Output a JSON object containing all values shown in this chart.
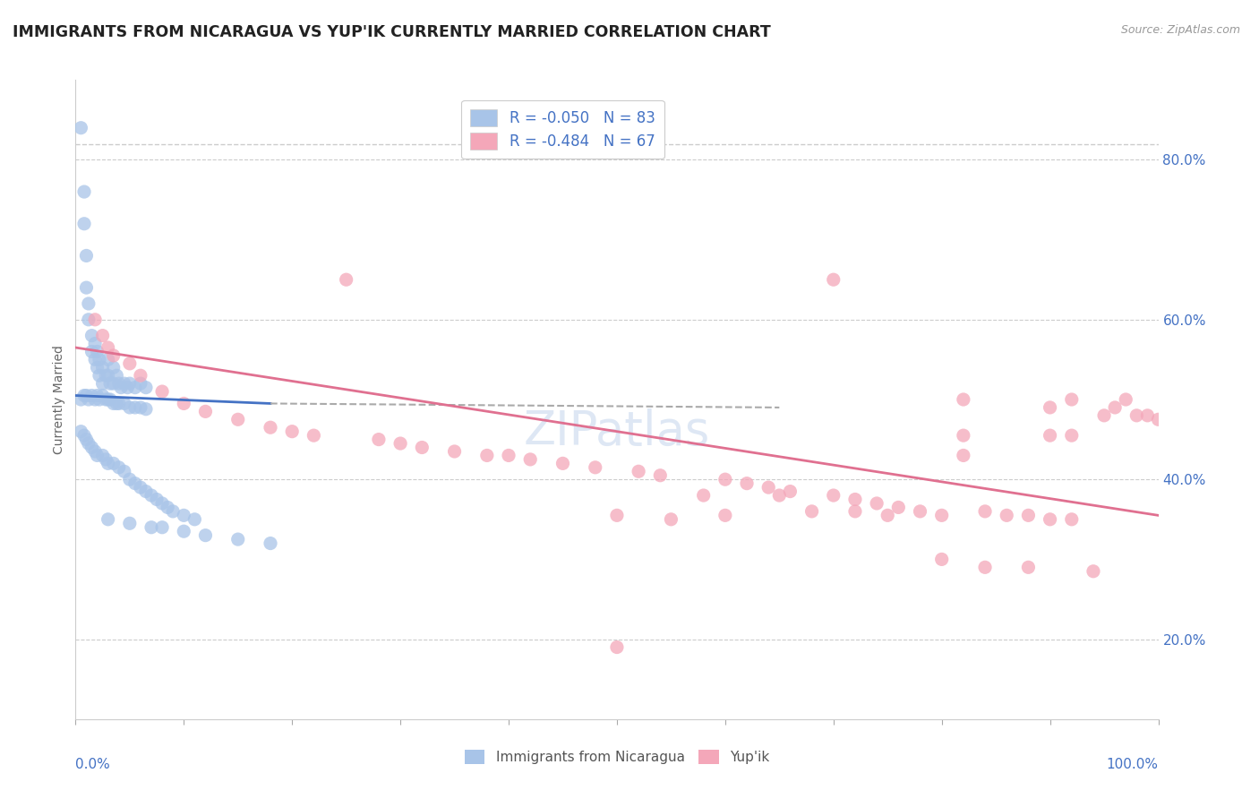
{
  "title": "IMMIGRANTS FROM NICARAGUA VS YUP'IK CURRENTLY MARRIED CORRELATION CHART",
  "source_text": "Source: ZipAtlas.com",
  "ylabel": "Currently Married",
  "xlim": [
    0.0,
    1.0
  ],
  "ylim": [
    0.1,
    0.9
  ],
  "yticks": [
    0.2,
    0.4,
    0.6,
    0.8
  ],
  "ytick_labels": [
    "20.0%",
    "40.0%",
    "60.0%",
    "80.0%"
  ],
  "blue_color": "#a8c4e8",
  "pink_color": "#f4a7b9",
  "blue_line_color": "#4472c4",
  "pink_line_color": "#e07090",
  "gray_dash_color": "#aaaaaa",
  "watermark": "ZIPatlas",
  "blue_scatter": [
    [
      0.005,
      0.84
    ],
    [
      0.008,
      0.76
    ],
    [
      0.008,
      0.72
    ],
    [
      0.01,
      0.68
    ],
    [
      0.01,
      0.64
    ],
    [
      0.012,
      0.62
    ],
    [
      0.012,
      0.6
    ],
    [
      0.015,
      0.58
    ],
    [
      0.015,
      0.56
    ],
    [
      0.018,
      0.57
    ],
    [
      0.018,
      0.55
    ],
    [
      0.02,
      0.56
    ],
    [
      0.02,
      0.54
    ],
    [
      0.022,
      0.55
    ],
    [
      0.022,
      0.53
    ],
    [
      0.025,
      0.54
    ],
    [
      0.025,
      0.52
    ],
    [
      0.028,
      0.53
    ],
    [
      0.03,
      0.55
    ],
    [
      0.03,
      0.53
    ],
    [
      0.032,
      0.52
    ],
    [
      0.035,
      0.54
    ],
    [
      0.035,
      0.52
    ],
    [
      0.038,
      0.53
    ],
    [
      0.04,
      0.52
    ],
    [
      0.042,
      0.515
    ],
    [
      0.045,
      0.52
    ],
    [
      0.048,
      0.515
    ],
    [
      0.05,
      0.52
    ],
    [
      0.055,
      0.515
    ],
    [
      0.06,
      0.52
    ],
    [
      0.065,
      0.515
    ],
    [
      0.005,
      0.5
    ],
    [
      0.008,
      0.505
    ],
    [
      0.01,
      0.505
    ],
    [
      0.012,
      0.5
    ],
    [
      0.015,
      0.505
    ],
    [
      0.018,
      0.5
    ],
    [
      0.02,
      0.505
    ],
    [
      0.022,
      0.5
    ],
    [
      0.025,
      0.505
    ],
    [
      0.028,
      0.5
    ],
    [
      0.03,
      0.5
    ],
    [
      0.032,
      0.5
    ],
    [
      0.035,
      0.495
    ],
    [
      0.038,
      0.495
    ],
    [
      0.04,
      0.495
    ],
    [
      0.045,
      0.495
    ],
    [
      0.05,
      0.49
    ],
    [
      0.055,
      0.49
    ],
    [
      0.06,
      0.49
    ],
    [
      0.065,
      0.488
    ],
    [
      0.005,
      0.46
    ],
    [
      0.008,
      0.455
    ],
    [
      0.01,
      0.45
    ],
    [
      0.012,
      0.445
    ],
    [
      0.015,
      0.44
    ],
    [
      0.018,
      0.435
    ],
    [
      0.02,
      0.43
    ],
    [
      0.025,
      0.43
    ],
    [
      0.028,
      0.425
    ],
    [
      0.03,
      0.42
    ],
    [
      0.035,
      0.42
    ],
    [
      0.04,
      0.415
    ],
    [
      0.045,
      0.41
    ],
    [
      0.05,
      0.4
    ],
    [
      0.055,
      0.395
    ],
    [
      0.06,
      0.39
    ],
    [
      0.065,
      0.385
    ],
    [
      0.07,
      0.38
    ],
    [
      0.075,
      0.375
    ],
    [
      0.08,
      0.37
    ],
    [
      0.085,
      0.365
    ],
    [
      0.09,
      0.36
    ],
    [
      0.1,
      0.355
    ],
    [
      0.11,
      0.35
    ],
    [
      0.03,
      0.35
    ],
    [
      0.05,
      0.345
    ],
    [
      0.07,
      0.34
    ],
    [
      0.08,
      0.34
    ],
    [
      0.1,
      0.335
    ],
    [
      0.12,
      0.33
    ],
    [
      0.15,
      0.325
    ],
    [
      0.18,
      0.32
    ]
  ],
  "pink_scatter": [
    [
      0.018,
      0.6
    ],
    [
      0.025,
      0.58
    ],
    [
      0.03,
      0.565
    ],
    [
      0.035,
      0.555
    ],
    [
      0.05,
      0.545
    ],
    [
      0.06,
      0.53
    ],
    [
      0.08,
      0.51
    ],
    [
      0.1,
      0.495
    ],
    [
      0.12,
      0.485
    ],
    [
      0.15,
      0.475
    ],
    [
      0.18,
      0.465
    ],
    [
      0.2,
      0.46
    ],
    [
      0.22,
      0.455
    ],
    [
      0.25,
      0.65
    ],
    [
      0.28,
      0.45
    ],
    [
      0.3,
      0.445
    ],
    [
      0.32,
      0.44
    ],
    [
      0.35,
      0.435
    ],
    [
      0.38,
      0.43
    ],
    [
      0.4,
      0.43
    ],
    [
      0.42,
      0.425
    ],
    [
      0.45,
      0.42
    ],
    [
      0.48,
      0.415
    ],
    [
      0.5,
      0.355
    ],
    [
      0.52,
      0.41
    ],
    [
      0.54,
      0.405
    ],
    [
      0.55,
      0.35
    ],
    [
      0.58,
      0.38
    ],
    [
      0.6,
      0.4
    ],
    [
      0.62,
      0.395
    ],
    [
      0.64,
      0.39
    ],
    [
      0.65,
      0.38
    ],
    [
      0.66,
      0.385
    ],
    [
      0.68,
      0.36
    ],
    [
      0.7,
      0.65
    ],
    [
      0.7,
      0.38
    ],
    [
      0.72,
      0.375
    ],
    [
      0.72,
      0.36
    ],
    [
      0.74,
      0.37
    ],
    [
      0.75,
      0.355
    ],
    [
      0.76,
      0.365
    ],
    [
      0.78,
      0.36
    ],
    [
      0.8,
      0.355
    ],
    [
      0.8,
      0.3
    ],
    [
      0.82,
      0.5
    ],
    [
      0.82,
      0.455
    ],
    [
      0.82,
      0.43
    ],
    [
      0.84,
      0.36
    ],
    [
      0.84,
      0.29
    ],
    [
      0.86,
      0.355
    ],
    [
      0.88,
      0.355
    ],
    [
      0.88,
      0.29
    ],
    [
      0.9,
      0.49
    ],
    [
      0.9,
      0.455
    ],
    [
      0.9,
      0.35
    ],
    [
      0.92,
      0.5
    ],
    [
      0.92,
      0.455
    ],
    [
      0.92,
      0.35
    ],
    [
      0.94,
      0.285
    ],
    [
      0.95,
      0.48
    ],
    [
      0.96,
      0.49
    ],
    [
      0.97,
      0.5
    ],
    [
      0.98,
      0.48
    ],
    [
      0.99,
      0.48
    ],
    [
      1.0,
      0.475
    ],
    [
      0.6,
      0.355
    ],
    [
      0.5,
      0.19
    ]
  ]
}
